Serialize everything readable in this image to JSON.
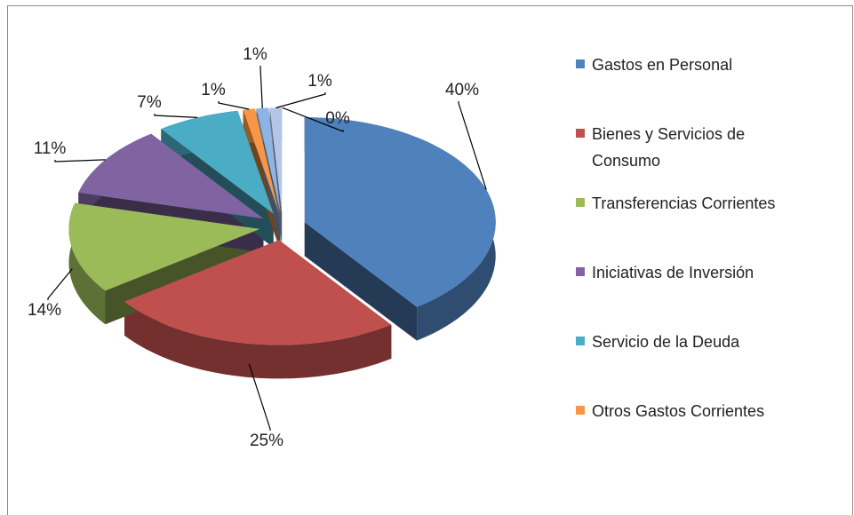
{
  "chart_data": {
    "type": "pie",
    "categories": [
      "Gastos en Personal",
      "Bienes y Servicios de Consumo",
      "Transferencias Corrientes",
      "Iniciativas de Inversión",
      "Servicio de la Deuda",
      "Otros Gastos Corrientes",
      null,
      null,
      null
    ],
    "values": [
      40,
      25,
      14,
      11,
      7,
      1,
      1,
      1,
      0
    ],
    "value_labels": [
      "40%",
      "25%",
      "14%",
      "11%",
      "7%",
      "1%",
      "1%",
      "1%",
      "0%"
    ],
    "colors": [
      "#4f81bd",
      "#c0504d",
      "#9bbb59",
      "#8064a2",
      "#4bacc6",
      "#f79646",
      "#8eb4e3",
      "#b3c6e7",
      "#e6a5a5"
    ],
    "legend": "right"
  }
}
